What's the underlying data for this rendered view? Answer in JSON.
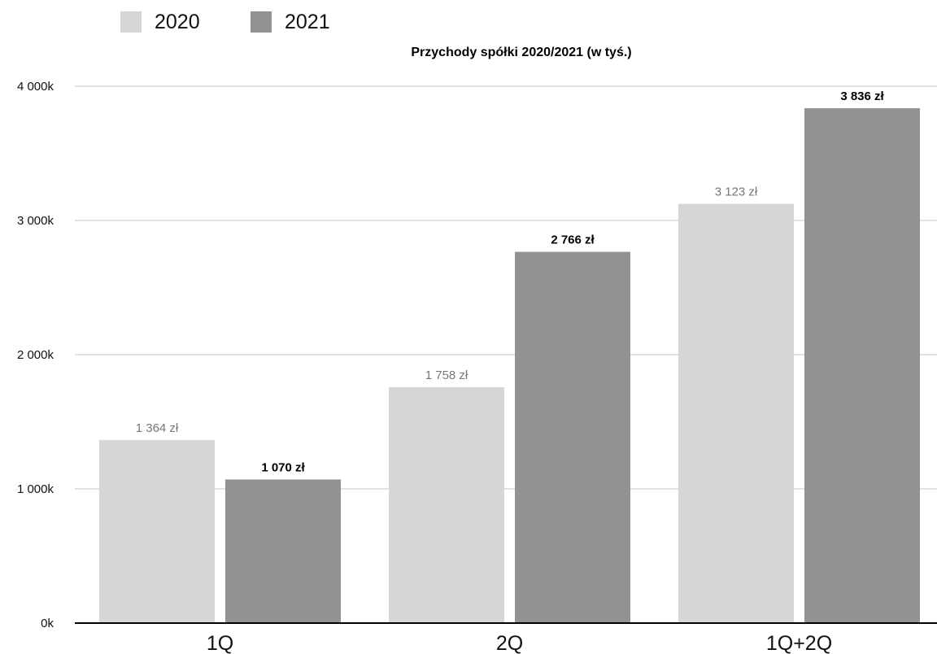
{
  "chart_data": {
    "type": "bar",
    "title": "Przychody spółki 2020/2021 (w tyś.)",
    "categories": [
      "1Q",
      "2Q",
      "1Q+2Q"
    ],
    "series": [
      {
        "name": "2020",
        "values": [
          1364,
          1758,
          3123
        ],
        "labels": [
          "1 364 zł",
          "1 758 zł",
          "3 123 zł"
        ]
      },
      {
        "name": "2021",
        "values": [
          1070,
          2766,
          3836
        ],
        "labels": [
          "1 070 zł",
          "2 766 zł",
          "3 836 zł"
        ]
      }
    ],
    "ylim": [
      0,
      4000
    ],
    "yticks": [
      0,
      1000,
      2000,
      3000,
      4000
    ],
    "ytick_labels": [
      "0k",
      "1 000k",
      "2 000k",
      "3 000k",
      "4 000k"
    ],
    "grid": true,
    "legend_position": "top-left",
    "colors": {
      "2020": "#d6d6d6",
      "2021": "#929292"
    }
  }
}
